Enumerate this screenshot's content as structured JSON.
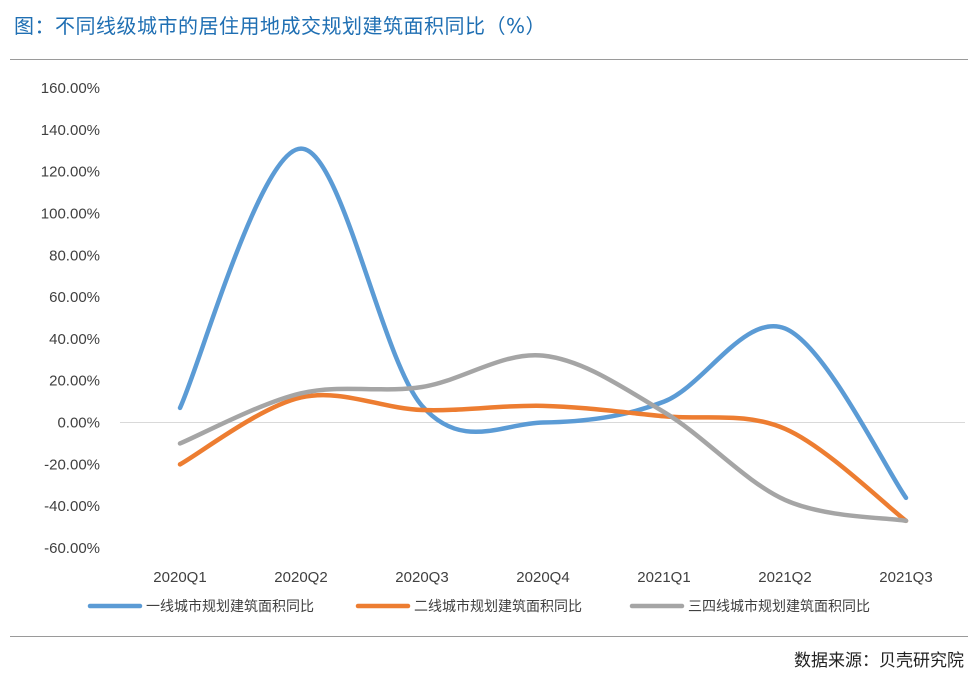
{
  "title": "图：不同线级城市的居住用地成交规划建筑面积同比（%）",
  "source": "数据来源：贝壳研究院",
  "chart_data": {
    "type": "line",
    "smooth": true,
    "categories": [
      "2020Q1",
      "2020Q2",
      "2020Q3",
      "2020Q4",
      "2021Q1",
      "2021Q2",
      "2021Q3"
    ],
    "ylim": [
      -60,
      160
    ],
    "yticks": [
      160,
      140,
      120,
      100,
      80,
      60,
      40,
      20,
      0,
      -20,
      -40,
      -60
    ],
    "ytick_labels": [
      "160.00%",
      "140.00%",
      "120.00%",
      "100.00%",
      "80.00%",
      "60.00%",
      "40.00%",
      "20.00%",
      "0.00%",
      "-20.00%",
      "-40.00%",
      "-60.00%"
    ],
    "grid": false,
    "legend_position": "bottom",
    "series": [
      {
        "name": "一线城市规划建筑面积同比",
        "color": "#5b9bd5",
        "values": [
          7,
          131,
          8,
          0,
          10,
          45,
          -36
        ]
      },
      {
        "name": "二线城市规划建筑面积同比",
        "color": "#ed7d31",
        "values": [
          -20,
          12,
          6,
          8,
          3,
          -3,
          -47
        ]
      },
      {
        "name": "三四线城市规划建筑面积同比",
        "color": "#a5a5a5",
        "values": [
          -10,
          14,
          17,
          32,
          5,
          -37,
          -47
        ]
      }
    ]
  }
}
